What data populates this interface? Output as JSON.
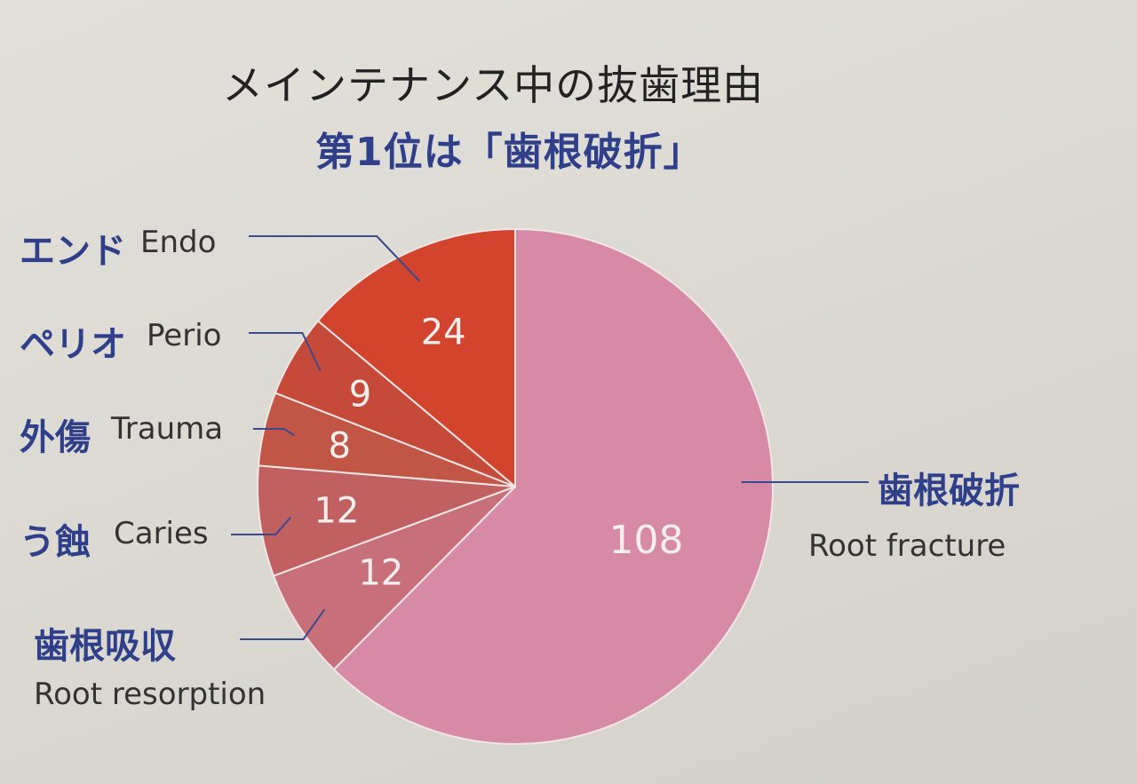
{
  "chart_data": {
    "type": "pie",
    "title": "メインテナンス中の抜歯理由",
    "subtitle": "第1位は「歯根破折」",
    "slices": [
      {
        "label_jp": "歯根破折",
        "label_en": "Root fracture",
        "value": 108,
        "color": "#d78aa6"
      },
      {
        "label_jp": "歯根吸収",
        "label_en": "Root resorption",
        "value": 12,
        "color": "#c8707a"
      },
      {
        "label_jp": "う蝕",
        "label_en": "Caries",
        "value": 12,
        "color": "#c06060"
      },
      {
        "label_jp": "外傷",
        "label_en": "Trauma",
        "value": 8,
        "color": "#c25646"
      },
      {
        "label_jp": "ペリオ",
        "label_en": "Perio",
        "value": 9,
        "color": "#c64a3a"
      },
      {
        "label_jp": "エンド",
        "label_en": "Endo",
        "value": 24,
        "color": "#d2442e"
      }
    ]
  }
}
